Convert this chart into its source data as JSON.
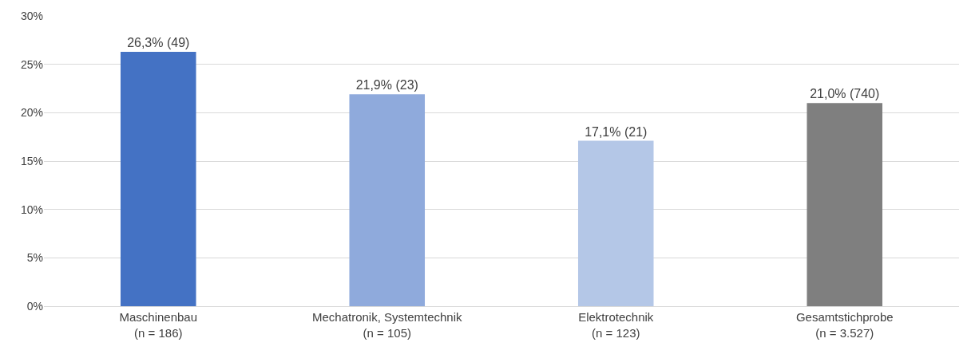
{
  "chart_data": {
    "type": "bar",
    "categories": [
      "Maschinenbau\n(n = 186)",
      "Mechatronik, Systemtechnik\n(n = 105)",
      "Elektrotechnik\n(n = 123)",
      "Gesamtstichprobe\n(n = 3.527)"
    ],
    "values": [
      26.3,
      21.9,
      17.1,
      21.0
    ],
    "colors": [
      "#4472c4",
      "#8faadc",
      "#b4c7e7",
      "#7f7f7f"
    ],
    "value_labels": [
      "26,3% (49)",
      "21,9% (23)",
      "17,1% (21)",
      "21,0% (740)"
    ],
    "ylim": [
      0,
      30
    ],
    "yticks": [
      {
        "value": 0,
        "label": "0%"
      },
      {
        "value": 5,
        "label": "5%"
      },
      {
        "value": 10,
        "label": "10%"
      },
      {
        "value": 15,
        "label": "15%"
      },
      {
        "value": 20,
        "label": "20%"
      },
      {
        "value": 25,
        "label": "25%"
      },
      {
        "value": 30,
        "label": "30%"
      }
    ],
    "grid": "y"
  }
}
